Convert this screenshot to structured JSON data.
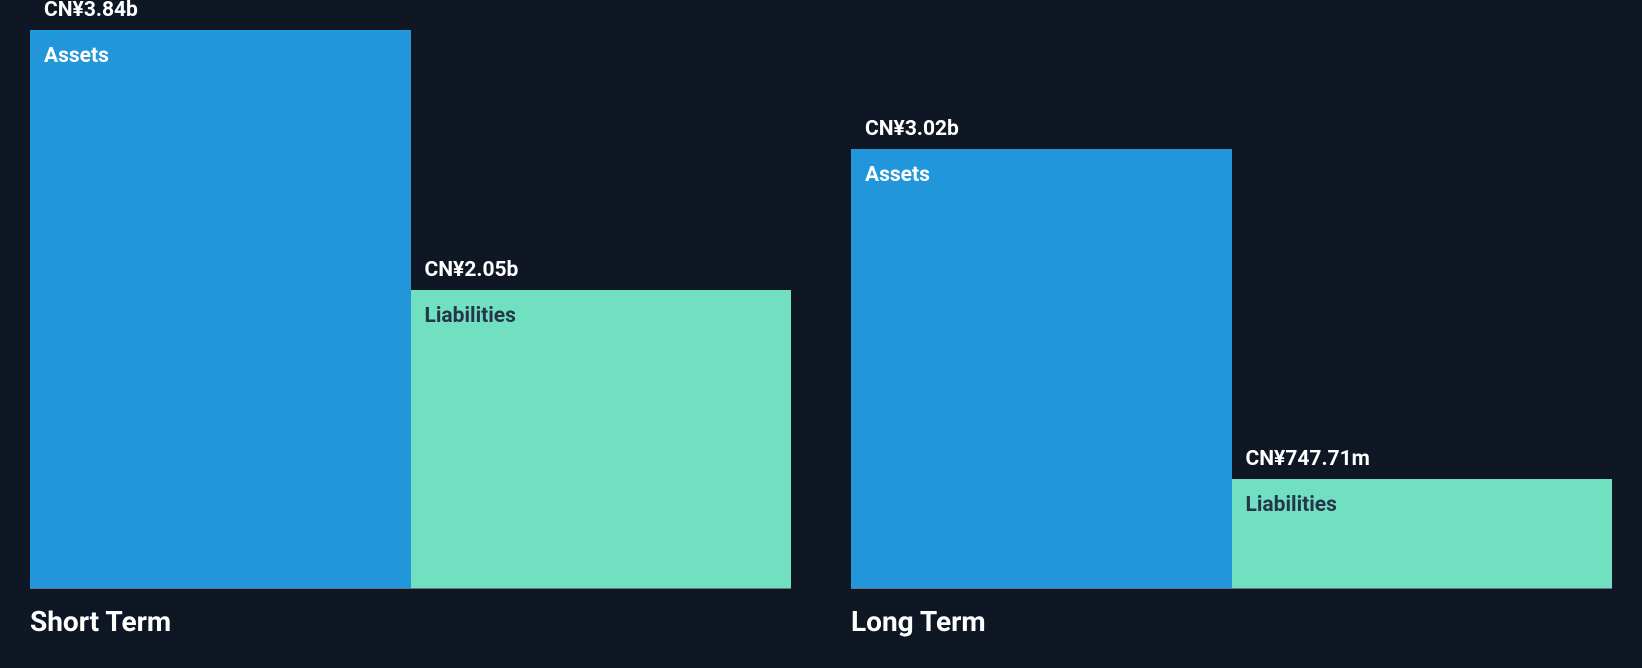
{
  "background_color": "#0f1724",
  "baseline_color": "#6b7280",
  "max_value": 3.84,
  "panels": [
    {
      "title": "Short Term",
      "bars": [
        {
          "series_label": "Assets",
          "value_label": "CN¥3.84b",
          "value": 3.84,
          "fill": "#2196da",
          "series_label_color": "#ffffff"
        },
        {
          "series_label": "Liabilities",
          "value_label": "CN¥2.05b",
          "value": 2.05,
          "fill": "#71e0c1",
          "series_label_color": "#25364b"
        }
      ]
    },
    {
      "title": "Long Term",
      "bars": [
        {
          "series_label": "Assets",
          "value_label": "CN¥3.02b",
          "value": 3.02,
          "fill": "#2196da",
          "series_label_color": "#ffffff"
        },
        {
          "series_label": "Liabilities",
          "value_label": "CN¥747.71m",
          "value": 0.74771,
          "fill": "#71e0c1",
          "series_label_color": "#25364b"
        }
      ]
    }
  ],
  "value_label_fontsize": 21,
  "series_label_fontsize": 21,
  "title_fontsize": 28,
  "value_label_color": "#ffffff",
  "title_color": "#ffffff"
}
